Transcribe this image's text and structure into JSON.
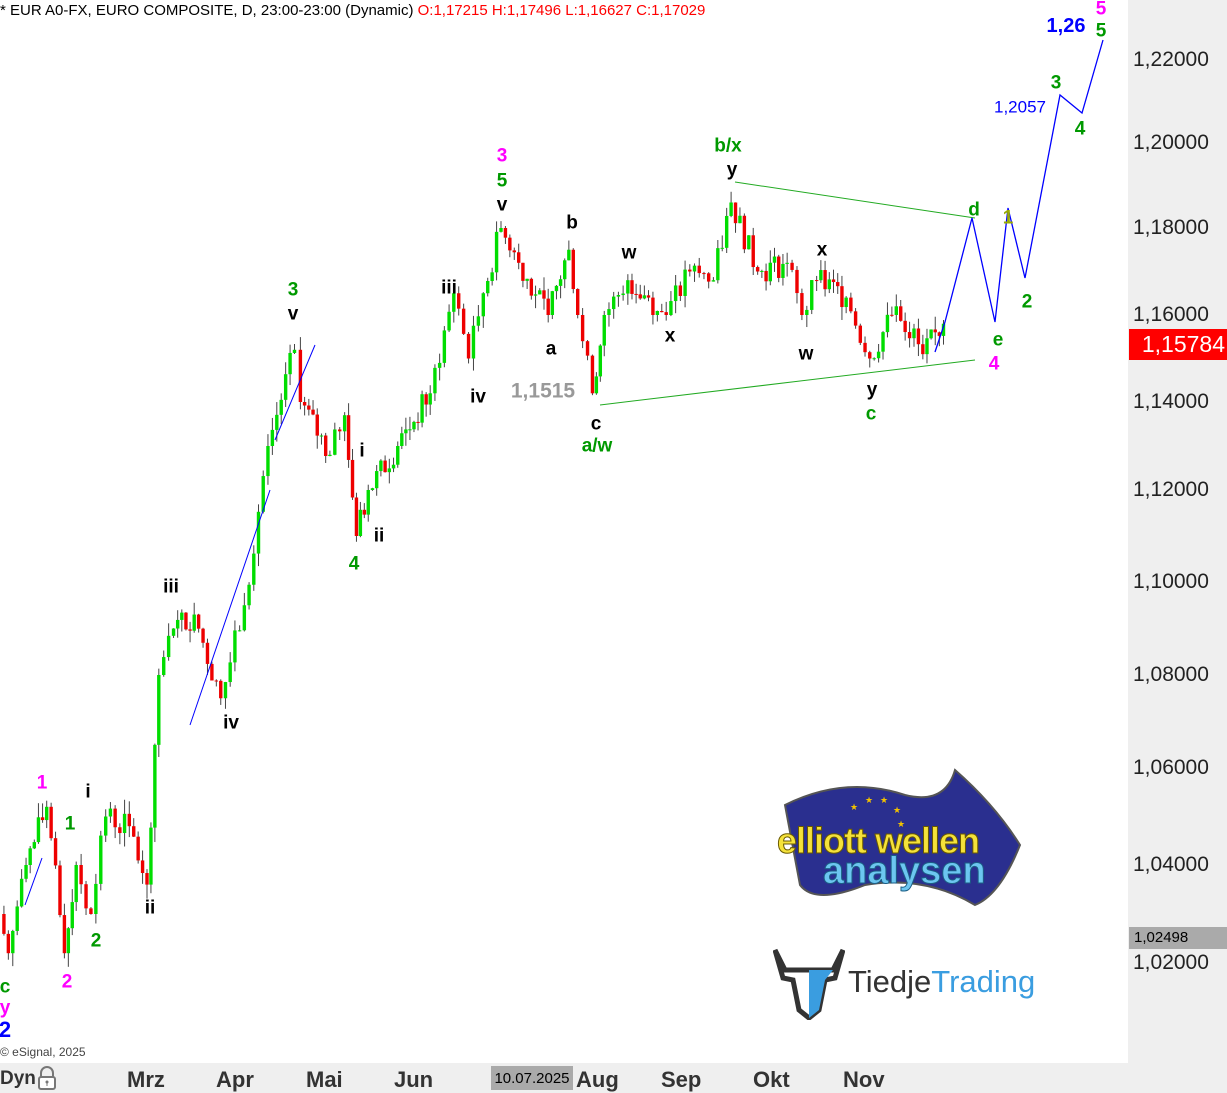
{
  "header": {
    "title": "* EUR A0-FX, EURO COMPOSITE, D, 23:00-23:00 (Dynamic)",
    "ohlc": "O:1,17215 H:1,17496 L:1,16627 C:1,17029"
  },
  "copyright": "© eSignal, 2025",
  "footer": {
    "dyn_label": "Dyn",
    "lock_icon": "lock-icon",
    "cursor_date": "10.07.2025"
  },
  "colors": {
    "up": "#00dd00",
    "down": "#ee0000",
    "projection": "#0000ff",
    "trendline": "#22aa22",
    "price_box": "#ff0000"
  },
  "chart_data": {
    "type": "candlestick",
    "title": "",
    "x_tick_labels": [
      "Mrz",
      "Apr",
      "Mai",
      "Jun",
      "Aug",
      "Sep",
      "Okt",
      "Nov"
    ],
    "y_tick_labels": [
      "1,22000",
      "1,20000",
      "1,18000",
      "1,16000",
      "1,14000",
      "1,12000",
      "1,10000",
      "1,08000",
      "1,06000",
      "1,04000",
      "1,02000"
    ],
    "y_ticks": [
      1.22,
      1.2,
      1.18,
      1.16,
      1.14,
      1.12,
      1.1,
      1.08,
      1.06,
      1.04,
      1.02
    ],
    "last_price": "1,15784",
    "marker_price": "1,02498",
    "price_path": [
      [
        "2025-01-10",
        1.03
      ],
      [
        "2025-01-13",
        1.022
      ],
      [
        "2025-01-19",
        1.04
      ],
      [
        "2025-01-26",
        1.052
      ],
      [
        "2025-02-01",
        1.022
      ],
      [
        "2025-02-05",
        1.04
      ],
      [
        "2025-02-10",
        1.03
      ],
      [
        "2025-02-15",
        1.05
      ],
      [
        "2025-02-23",
        1.048
      ],
      [
        "2025-03-01",
        1.036
      ],
      [
        "2025-03-05",
        1.08
      ],
      [
        "2025-03-10",
        1.09
      ],
      [
        "2025-03-17",
        1.093
      ],
      [
        "2025-03-26",
        1.075
      ],
      [
        "2025-04-03",
        1.095
      ],
      [
        "2025-04-11",
        1.13
      ],
      [
        "2025-04-20",
        1.152
      ],
      [
        "2025-04-22",
        1.14
      ],
      [
        "2025-05-02",
        1.128
      ],
      [
        "2025-05-07",
        1.137
      ],
      [
        "2025-05-11",
        1.11
      ],
      [
        "2025-05-15",
        1.12
      ],
      [
        "2025-05-25",
        1.13
      ],
      [
        "2025-06-05",
        1.142
      ],
      [
        "2025-06-13",
        1.165
      ],
      [
        "2025-06-18",
        1.15
      ],
      [
        "2025-06-23",
        1.165
      ],
      [
        "2025-06-29",
        1.18
      ],
      [
        "2025-07-05",
        1.172
      ],
      [
        "2025-07-15",
        1.16
      ],
      [
        "2025-07-22",
        1.175
      ],
      [
        "2025-07-25",
        1.16
      ],
      [
        "2025-07-30",
        1.142
      ],
      [
        "2025-08-03",
        1.16
      ],
      [
        "2025-08-11",
        1.168
      ],
      [
        "2025-08-18",
        1.164
      ],
      [
        "2025-08-24",
        1.16
      ],
      [
        "2025-09-01",
        1.17
      ],
      [
        "2025-09-09",
        1.168
      ],
      [
        "2025-09-15",
        1.186
      ],
      [
        "2025-09-24",
        1.17
      ],
      [
        "2025-10-04",
        1.172
      ],
      [
        "2025-10-09",
        1.16
      ],
      [
        "2025-10-14",
        1.168
      ],
      [
        "2025-10-24",
        1.164
      ],
      [
        "2025-11-01",
        1.15
      ],
      [
        "2025-11-10",
        1.162
      ],
      [
        "2025-11-19",
        1.151
      ],
      [
        "2025-11-26",
        1.158
      ]
    ],
    "wave_labels": [
      {
        "text": "1,26",
        "color": "#0000ff"
      },
      {
        "text": "5",
        "color": "#ff00ff"
      },
      {
        "text": "5",
        "color": "#009900"
      },
      {
        "text": "3",
        "color": "#009900"
      },
      {
        "text": "1,2057",
        "color": "#0000ff"
      },
      {
        "text": "4",
        "color": "#009900"
      },
      {
        "text": "b/x",
        "color": "#009900"
      },
      {
        "text": "y",
        "color": "#000000"
      },
      {
        "text": "d",
        "color": "#009900"
      },
      {
        "text": "1",
        "color": "#99aa00"
      },
      {
        "text": "x",
        "color": "#000000"
      },
      {
        "text": "2",
        "color": "#009900"
      },
      {
        "text": "e",
        "color": "#009900"
      },
      {
        "text": "4",
        "color": "#ff00ff"
      },
      {
        "text": "w",
        "color": "#000000"
      },
      {
        "text": "y",
        "color": "#000000"
      },
      {
        "text": "c",
        "color": "#009900"
      },
      {
        "text": "3",
        "color": "#ff00ff"
      },
      {
        "text": "5",
        "color": "#009900"
      },
      {
        "text": "v",
        "color": "#000000"
      },
      {
        "text": "b",
        "color": "#000000"
      },
      {
        "text": "w",
        "color": "#000000"
      },
      {
        "text": "x",
        "color": "#000000"
      },
      {
        "text": "a",
        "color": "#000000"
      },
      {
        "text": "1,1515",
        "color": "#999999"
      },
      {
        "text": "c",
        "color": "#000000"
      },
      {
        "text": "a/w",
        "color": "#009900"
      },
      {
        "text": "iii",
        "color": "#000000"
      },
      {
        "text": "iv",
        "color": "#000000"
      },
      {
        "text": "3",
        "color": "#009900"
      },
      {
        "text": "v",
        "color": "#000000"
      },
      {
        "text": "i",
        "color": "#000000"
      },
      {
        "text": "ii",
        "color": "#000000"
      },
      {
        "text": "4",
        "color": "#009900"
      },
      {
        "text": "iii",
        "color": "#000000"
      },
      {
        "text": "iv",
        "color": "#000000"
      },
      {
        "text": "1",
        "color": "#ff00ff"
      },
      {
        "text": "i",
        "color": "#000000"
      },
      {
        "text": "1",
        "color": "#009900"
      },
      {
        "text": "ii",
        "color": "#000000"
      },
      {
        "text": "2",
        "color": "#009900"
      },
      {
        "text": "2",
        "color": "#ff00ff"
      },
      {
        "text": "c",
        "color": "#009900"
      },
      {
        "text": "y",
        "color": "#ff00ff"
      },
      {
        "text": "2",
        "color": "#0000ff"
      }
    ]
  },
  "logos": {
    "elliott": "elliott wellen analysen",
    "tiedje_1": "Tiedje",
    "tiedje_2": "Trading"
  }
}
